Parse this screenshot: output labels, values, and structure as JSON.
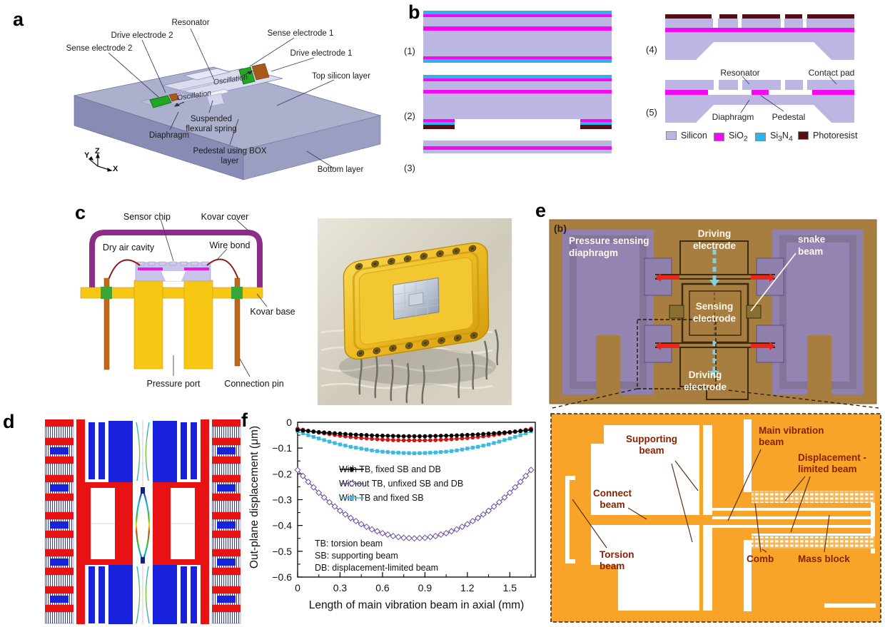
{
  "figure": {
    "letters": {
      "a": "a",
      "b": "b",
      "c": "c",
      "d": "d",
      "e": "e",
      "f": "f"
    }
  },
  "panel_a": {
    "labels": {
      "resonator": "Resonator",
      "drive_electrode_2": "Drive electrode 2",
      "sense_electrode_2": "Sense electrode 2",
      "sense_electrode_1": "Sense electrode 1",
      "drive_electrode_1": "Drive electrode 1",
      "top_silicon_layer": "Top silicon layer",
      "oscillation_left": "Oscillation",
      "oscillation_right": "Oscillation",
      "suspended_flexural_spring": "Suspended flexural spring",
      "diaphragm": "Diaphragm",
      "pedestal_box_layer": "Pedestal using BOX layer",
      "bottom_layer": "Bottom layer"
    },
    "axes": {
      "x": "X",
      "y": "Y",
      "z": "Z"
    }
  },
  "panel_b": {
    "step_labels": [
      "(1)",
      "(2)",
      "(3)",
      "(4)",
      "(5)"
    ],
    "annotations": {
      "resonator": "Resonator",
      "contact_pad": "Contact pad",
      "diaphragm": "Diaphragm",
      "pedestal": "Pedestal"
    },
    "legend": {
      "silicon": {
        "label": "Silicon",
        "color": "#bcb6e2"
      },
      "sio2": {
        "base": "SiO",
        "sub": "2",
        "color": "#f309f3"
      },
      "si3n4": {
        "b1": "Si",
        "s1": "3",
        "b2": "N",
        "s2": "4",
        "color": "#2ab5ea"
      },
      "photoresist": {
        "label": "Photoresist",
        "color": "#570d12"
      }
    }
  },
  "panel_c": {
    "labels": {
      "sensor_chip": "Sensor chip",
      "kovar_cover": "Kovar cover",
      "dry_air_cavity": "Dry air cavity",
      "wire_bond": "Wire bond",
      "kovar_base": "Kovar base",
      "pressure_port": "Pressure port",
      "connection_pin": "Connection pin"
    }
  },
  "panel_e": {
    "sub_label": "(b)",
    "labels": {
      "pressure_sensing_diaphragm": "Pressure sensing diaphragm",
      "driving_electrode_top": "Driving electrode",
      "snake_beam": "snake beam",
      "sensing_electrode": "Sensing electrode",
      "driving_electrode_bottom": "Driving electrode"
    },
    "zoom_labels": {
      "supporting_beam": "Supporting beam",
      "main_vibration_beam": "Main vibration beam",
      "displacement_limited_beam": "Displacement -limited beam",
      "connect_beam": "Connect beam",
      "torsion_beam": "Torsion beam",
      "comb": "Comb",
      "mass_block": "Mass block"
    }
  },
  "chart_data": {
    "type": "line",
    "title": "",
    "xlabel": "Length of main vibration beam in axial (mm)",
    "ylabel": "Out-plane displacement (μm)",
    "xlim": [
      0,
      1.68
    ],
    "ylim": [
      -0.6,
      0
    ],
    "xticks": [
      0,
      0.3,
      0.6,
      0.9,
      1.2,
      1.5
    ],
    "yticks": [
      0,
      -0.1,
      -0.2,
      -0.3,
      -0.4,
      -0.5,
      -0.6
    ],
    "grid": false,
    "legend_position": "upper-middle",
    "x": [
      0,
      0.075,
      0.15,
      0.225,
      0.3,
      0.375,
      0.45,
      0.525,
      0.6,
      0.675,
      0.75,
      0.825,
      0.9,
      0.975,
      1.05,
      1.125,
      1.2,
      1.275,
      1.35,
      1.425,
      1.5,
      1.575,
      1.65
    ],
    "series": [
      {
        "name": "With TB, fixed SB and DB",
        "color": "#000000",
        "marker": "circle",
        "in_legend": true,
        "values": [
          -0.03,
          -0.034,
          -0.038,
          -0.041,
          -0.044,
          -0.047,
          -0.049,
          -0.051,
          -0.052,
          -0.053,
          -0.054,
          -0.054,
          -0.054,
          -0.053,
          -0.052,
          -0.051,
          -0.049,
          -0.047,
          -0.044,
          -0.041,
          -0.038,
          -0.034,
          -0.03
        ]
      },
      {
        "name": "",
        "color": "#cf1717",
        "marker": "circle",
        "in_legend": false,
        "values": [
          -0.025,
          -0.033,
          -0.04,
          -0.046,
          -0.052,
          -0.057,
          -0.061,
          -0.064,
          -0.067,
          -0.069,
          -0.07,
          -0.07,
          -0.07,
          -0.069,
          -0.067,
          -0.064,
          -0.061,
          -0.057,
          -0.052,
          -0.046,
          -0.04,
          -0.033,
          -0.025
        ]
      },
      {
        "name": "Without TB, unfixed SB and DB",
        "color": "#6b4fa0",
        "marker": "diamond-open",
        "in_legend": true,
        "values": [
          -0.185,
          -0.231,
          -0.273,
          -0.31,
          -0.343,
          -0.371,
          -0.395,
          -0.415,
          -0.43,
          -0.441,
          -0.448,
          -0.45,
          -0.448,
          -0.441,
          -0.43,
          -0.415,
          -0.395,
          -0.371,
          -0.343,
          -0.31,
          -0.273,
          -0.231,
          -0.185
        ]
      },
      {
        "name": "With TB and fixed SB",
        "color": "#3fb8de",
        "marker": "square",
        "in_legend": true,
        "values": [
          -0.035,
          -0.05,
          -0.063,
          -0.075,
          -0.086,
          -0.095,
          -0.102,
          -0.109,
          -0.114,
          -0.117,
          -0.119,
          -0.12,
          -0.119,
          -0.117,
          -0.114,
          -0.109,
          -0.102,
          -0.095,
          -0.086,
          -0.075,
          -0.063,
          -0.05,
          -0.035
        ]
      }
    ],
    "annotations": [
      "TB: torsion beam",
      "SB: supporting beam",
      "DB: displacement-limited beam"
    ]
  }
}
